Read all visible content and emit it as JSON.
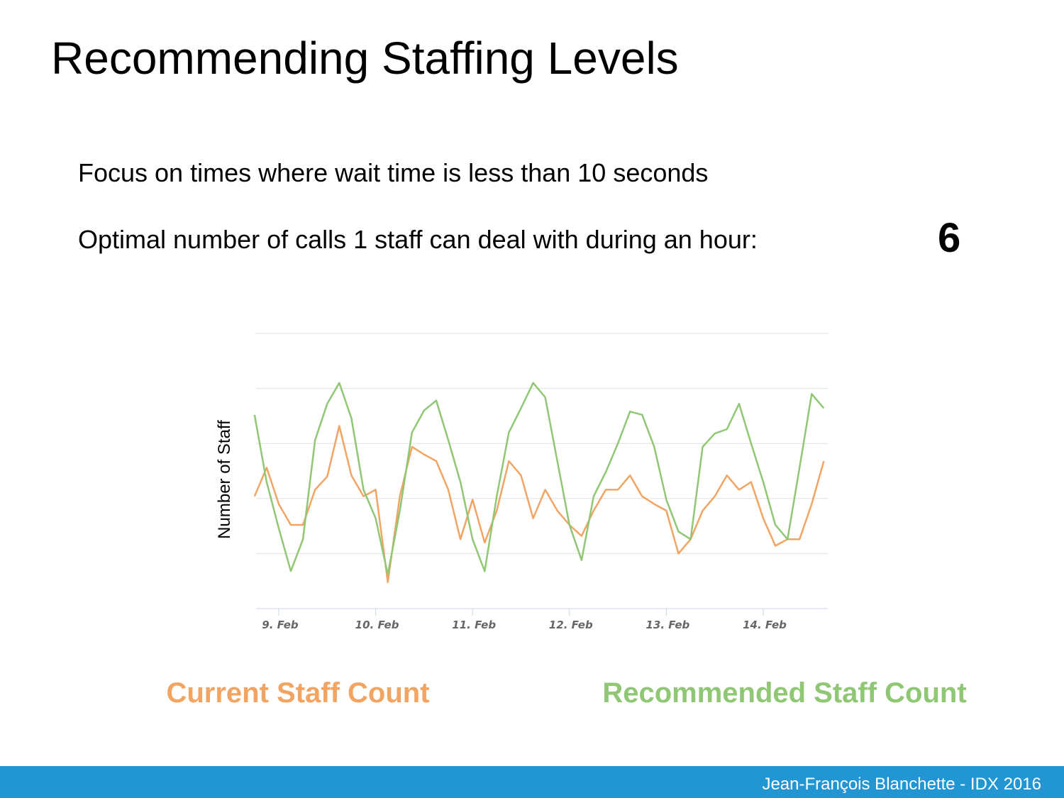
{
  "title": "Recommending Staffing Levels",
  "focus_text": "Focus on times where wait time is less than 10 seconds",
  "optimal_text": "Optimal number of calls 1 staff can deal with during an hour:",
  "optimal_calls": 6,
  "footer": "Jean-François Blanchette - IDX 2016",
  "chart_data": {
    "type": "line",
    "y_label": "Number of Staff",
    "x": [
      8.75,
      8.875,
      9,
      9.125,
      9.25,
      9.375,
      9.5,
      9.625,
      9.75,
      9.875,
      10,
      10.125,
      10.25,
      10.375,
      10.5,
      10.625,
      10.75,
      10.875,
      11,
      11.125,
      11.25,
      11.375,
      11.5,
      11.625,
      11.75,
      11.875,
      12,
      12.125,
      12.25,
      12.375,
      12.5,
      12.625,
      12.75,
      12.875,
      13,
      13.125,
      13.25,
      13.375,
      13.5,
      13.625,
      13.75,
      13.875,
      14,
      14.125,
      14.25,
      14.375,
      14.5,
      14.625
    ],
    "xlim": [
      8.766,
      14.666
    ],
    "xticks": [
      {
        "value": 9,
        "label": "9. Feb"
      },
      {
        "value": 10,
        "label": "10. Feb"
      },
      {
        "value": 11,
        "label": "11. Feb"
      },
      {
        "value": 12,
        "label": "12. Feb"
      },
      {
        "value": 13,
        "label": "13. Feb"
      },
      {
        "value": 14,
        "label": "14. Feb"
      }
    ],
    "ylim": [
      0,
      25
    ],
    "yticks": [
      0,
      5,
      10,
      15,
      20,
      25
    ],
    "grid": true,
    "series": [
      {
        "name": "Current Staff Count",
        "color": "#f2a463",
        "values": [
          10.2,
          12.8,
          9.5,
          7.6,
          7.6,
          10.8,
          12.0,
          16.6,
          12.1,
          10.2,
          10.8,
          2.4,
          10.2,
          14.7,
          14.0,
          13.4,
          10.8,
          6.3,
          9.9,
          6.0,
          8.9,
          13.4,
          12.1,
          8.2,
          10.8,
          8.9,
          7.6,
          6.6,
          8.9,
          10.8,
          10.8,
          12.1,
          10.2,
          9.5,
          8.9,
          5.0,
          6.3,
          8.9,
          10.2,
          12.1,
          10.8,
          11.5,
          8.2,
          5.7,
          6.3,
          6.3,
          9.5,
          13.4
        ]
      },
      {
        "name": "Recommended Staff Count",
        "color": "#90c775",
        "values": [
          17.6,
          11.5,
          7.3,
          3.4,
          6.3,
          15.3,
          18.6,
          20.5,
          17.3,
          10.8,
          8.2,
          3.1,
          8.9,
          16.0,
          18.0,
          18.9,
          15.3,
          11.5,
          6.3,
          3.4,
          10.2,
          16.0,
          18.2,
          20.5,
          19.2,
          13.4,
          7.6,
          4.4,
          10.2,
          12.4,
          15.0,
          17.9,
          17.6,
          14.7,
          9.9,
          7.0,
          6.3,
          14.7,
          15.9,
          16.3,
          18.6,
          15.0,
          11.5,
          7.6,
          6.3,
          12.8,
          19.5,
          18.2
        ]
      }
    ]
  }
}
